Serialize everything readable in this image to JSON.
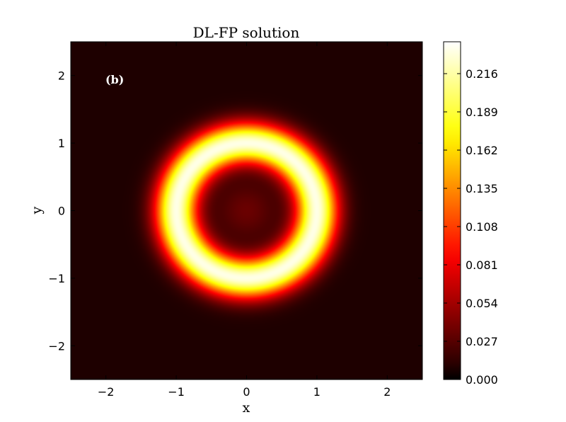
{
  "chart_data": {
    "type": "heatmap",
    "title": "DL-FP solution",
    "xlabel": "x",
    "ylabel": "y",
    "panel_label": "(b)",
    "xlim": [
      -2.5,
      2.5
    ],
    "ylim": [
      -2.5,
      2.5
    ],
    "x_ticks": [
      {
        "value": -2,
        "label": "−2"
      },
      {
        "value": -1,
        "label": "−1"
      },
      {
        "value": 0,
        "label": "0"
      },
      {
        "value": 1,
        "label": "1"
      },
      {
        "value": 2,
        "label": "2"
      }
    ],
    "y_ticks": [
      {
        "value": -2,
        "label": "−2"
      },
      {
        "value": -1,
        "label": "−1"
      },
      {
        "value": 0,
        "label": "0"
      },
      {
        "value": 1,
        "label": "1"
      },
      {
        "value": 2,
        "label": "2"
      }
    ],
    "colormap": "hot",
    "colorbar": {
      "range": [
        0.0,
        0.2385
      ],
      "ticks": [
        {
          "value": 0.0,
          "label": "0.000"
        },
        {
          "value": 0.027,
          "label": "0.027"
        },
        {
          "value": 0.054,
          "label": "0.054"
        },
        {
          "value": 0.081,
          "label": "0.081"
        },
        {
          "value": 0.108,
          "label": "0.108"
        },
        {
          "value": 0.135,
          "label": "0.135"
        },
        {
          "value": 0.162,
          "label": "0.162"
        },
        {
          "value": 0.189,
          "label": "0.189"
        },
        {
          "value": 0.216,
          "label": "0.216"
        }
      ]
    },
    "field": {
      "shape": "ring",
      "ring_radius": 1.0,
      "ring_width": 0.3,
      "peak_value": 0.232,
      "center_value": 0.045,
      "background_value": 0.007
    }
  }
}
